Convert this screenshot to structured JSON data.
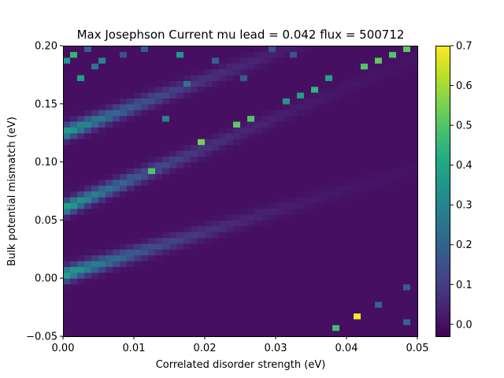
{
  "chart_data": {
    "type": "heatmap",
    "title": "Max Josephson Current mu lead = 0.042 flux = 500712",
    "xlabel": "Correlated disorder strength (eV)",
    "ylabel": "Bulk potential mismatch (eV)",
    "xlim": [
      0.0,
      0.05
    ],
    "ylim": [
      -0.05,
      0.2
    ],
    "grid": false,
    "legend": "none",
    "colorbar": {
      "position": "right",
      "range": [
        -0.03,
        0.7
      ],
      "ticks": [
        "0.0",
        "0.1",
        "0.2",
        "0.3",
        "0.4",
        "0.5",
        "0.6",
        "0.7"
      ],
      "colormap": "viridis"
    },
    "x_ticks": [
      "0.00",
      "0.01",
      "0.02",
      "0.03",
      "0.04",
      "0.05"
    ],
    "y_ticks": [
      "−0.05",
      "0.00",
      "0.05",
      "0.10",
      "0.15",
      "0.20"
    ],
    "grid_size": {
      "nx": 50,
      "ny": 50
    },
    "background_value": 0.0,
    "bands": [
      {
        "name": "",
        "y_at_x0": 0.003,
        "y_at_x005": 0.095,
        "peak": 0.42,
        "width": 0.006
      },
      {
        "name": "",
        "y_at_x0": 0.06,
        "y_at_x005": 0.19,
        "peak": 0.42,
        "width": 0.006
      },
      {
        "name": "",
        "y_at_x0": 0.125,
        "y_at_x005": 0.24,
        "peak": 0.4,
        "width": 0.006
      }
    ],
    "hot_cells": [
      {
        "x": 0.0415,
        "y": -0.0325,
        "v": 0.7
      },
      {
        "x": 0.0385,
        "y": -0.0425,
        "v": 0.47
      },
      {
        "x": 0.0445,
        "y": -0.0225,
        "v": 0.2
      },
      {
        "x": 0.0485,
        "y": -0.0375,
        "v": 0.2
      },
      {
        "x": 0.0485,
        "y": -0.0075,
        "v": 0.18
      },
      {
        "x": 0.0465,
        "y": 0.1925,
        "v": 0.5
      },
      {
        "x": 0.0445,
        "y": 0.1875,
        "v": 0.52
      },
      {
        "x": 0.0425,
        "y": 0.1825,
        "v": 0.5
      },
      {
        "x": 0.0485,
        "y": 0.1975,
        "v": 0.52
      },
      {
        "x": 0.0375,
        "y": 0.1725,
        "v": 0.4
      },
      {
        "x": 0.0355,
        "y": 0.1625,
        "v": 0.45
      },
      {
        "x": 0.0335,
        "y": 0.1575,
        "v": 0.38
      },
      {
        "x": 0.0315,
        "y": 0.1525,
        "v": 0.35
      },
      {
        "x": 0.0265,
        "y": 0.1375,
        "v": 0.5
      },
      {
        "x": 0.0245,
        "y": 0.1325,
        "v": 0.52
      },
      {
        "x": 0.0195,
        "y": 0.1175,
        "v": 0.55
      },
      {
        "x": 0.0125,
        "y": 0.0925,
        "v": 0.5
      },
      {
        "x": 0.0015,
        "y": 0.1925,
        "v": 0.45
      },
      {
        "x": 0.0005,
        "y": 0.1875,
        "v": 0.35
      },
      {
        "x": 0.0025,
        "y": 0.1725,
        "v": 0.38
      },
      {
        "x": 0.0045,
        "y": 0.1825,
        "v": 0.25
      },
      {
        "x": 0.0055,
        "y": 0.1875,
        "v": 0.3
      },
      {
        "x": 0.0035,
        "y": 0.1975,
        "v": 0.18
      },
      {
        "x": 0.0085,
        "y": 0.1925,
        "v": 0.15
      },
      {
        "x": 0.0165,
        "y": 0.1925,
        "v": 0.35
      },
      {
        "x": 0.0145,
        "y": 0.1375,
        "v": 0.3
      },
      {
        "x": 0.0175,
        "y": 0.1675,
        "v": 0.25
      },
      {
        "x": 0.0215,
        "y": 0.1875,
        "v": 0.2
      },
      {
        "x": 0.0295,
        "y": 0.1975,
        "v": 0.15
      },
      {
        "x": 0.0325,
        "y": 0.1925,
        "v": 0.15
      },
      {
        "x": 0.0255,
        "y": 0.1725,
        "v": 0.18
      },
      {
        "x": 0.0115,
        "y": 0.1975,
        "v": 0.18
      }
    ]
  }
}
